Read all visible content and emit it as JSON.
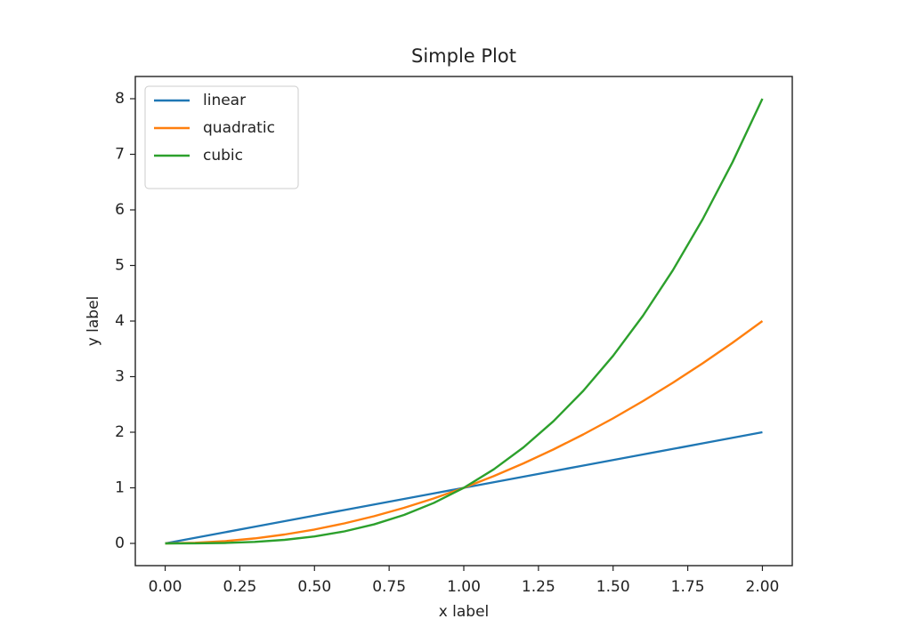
{
  "chart_data": {
    "type": "line",
    "title": "Simple Plot",
    "x_label": "x label",
    "y_label": "y label",
    "x": [
      0,
      0.1,
      0.2,
      0.3,
      0.4,
      0.5,
      0.6,
      0.7,
      0.8,
      0.9,
      1,
      1.1,
      1.2,
      1.3,
      1.4,
      1.5,
      1.6,
      1.7,
      1.8,
      1.9,
      2
    ],
    "series": [
      {
        "name": "linear",
        "color": "#1f77b4",
        "values": [
          0,
          0.1,
          0.2,
          0.3,
          0.4,
          0.5,
          0.6,
          0.7,
          0.8,
          0.9,
          1,
          1.1,
          1.2,
          1.3,
          1.4,
          1.5,
          1.6,
          1.7,
          1.8,
          1.9,
          2
        ]
      },
      {
        "name": "quadratic",
        "color": "#ff7f0e",
        "values": [
          0,
          0.01,
          0.04,
          0.09,
          0.16,
          0.25,
          0.36,
          0.49,
          0.64,
          0.81,
          1,
          1.21,
          1.44,
          1.69,
          1.96,
          2.25,
          2.56,
          2.89,
          3.24,
          3.61,
          4
        ]
      },
      {
        "name": "cubic",
        "color": "#2ca02c",
        "values": [
          0,
          0.001,
          0.008,
          0.027,
          0.064,
          0.125,
          0.216,
          0.343,
          0.512,
          0.729,
          1,
          1.331,
          1.728,
          2.197,
          2.744,
          3.375,
          4.096,
          4.913,
          5.832,
          6.859,
          8
        ]
      }
    ],
    "xlim": [
      -0.1,
      2.1
    ],
    "xticks": [
      {
        "value": 0,
        "label": "0.00"
      },
      {
        "value": 0.25,
        "label": "0.25"
      },
      {
        "value": 0.5,
        "label": "0.50"
      },
      {
        "value": 0.75,
        "label": "0.75"
      },
      {
        "value": 1,
        "label": "1.00"
      },
      {
        "value": 1.25,
        "label": "1.25"
      },
      {
        "value": 1.5,
        "label": "1.50"
      },
      {
        "value": 1.75,
        "label": "1.75"
      },
      {
        "value": 2,
        "label": "2.00"
      }
    ],
    "ylim": [
      -0.4,
      8.4
    ],
    "yticks": [
      0,
      1,
      2,
      3,
      4,
      5,
      6,
      7,
      8
    ],
    "legend": "upper left",
    "grid": false
  }
}
